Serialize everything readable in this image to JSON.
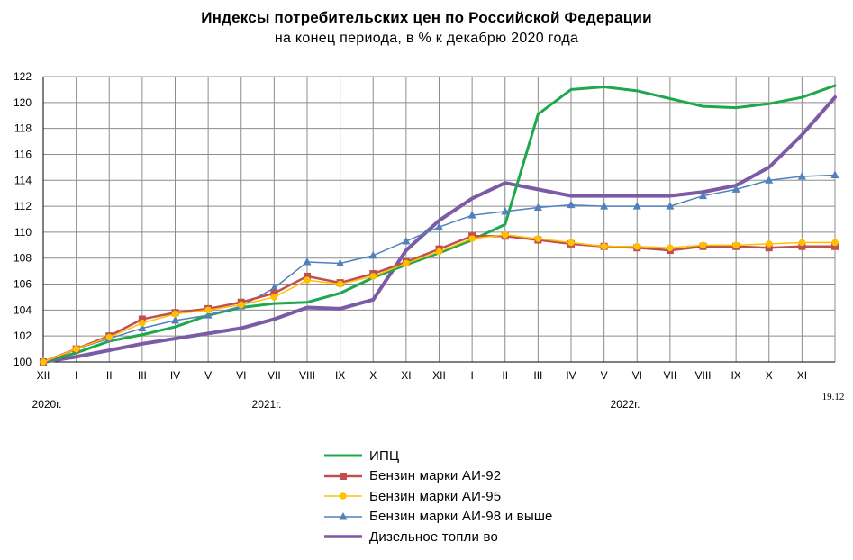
{
  "chart_data": {
    "type": "line",
    "title": "Индексы потребительских цен по Российской Федерации",
    "subtitle": "на конец  периода, в % к декабрю 2020 года",
    "x": [
      "XII",
      "I",
      "II",
      "III",
      "IV",
      "V",
      "VI",
      "VII",
      "VIII",
      "IX",
      "X",
      "XI",
      "XII",
      "I",
      "II",
      "III",
      "IV",
      "V",
      "VI",
      "VII",
      "VIII",
      "IX",
      "X",
      "XI",
      "19.12"
    ],
    "x_tick_labels": [
      "XII",
      "I",
      "II",
      "III",
      "IV",
      "V",
      "VI",
      "VII",
      "VIII",
      "IX",
      "X",
      "XI",
      "XII",
      "I",
      "II",
      "III",
      "IV",
      "V",
      "VI",
      "VII",
      "VIII",
      "IX",
      "X",
      "XI"
    ],
    "x_end_label": "19.12",
    "year_labels": [
      "2020г.",
      "2021г.",
      "2022г."
    ],
    "ylim": [
      100,
      122
    ],
    "y_ticks": [
      100,
      102,
      104,
      106,
      108,
      110,
      112,
      114,
      116,
      118,
      120,
      122
    ],
    "grid": true,
    "legend_position": "bottom",
    "series": [
      {
        "name": "ИПЦ",
        "color": "#1ea84d",
        "marker": "none",
        "width": 3,
        "values": [
          100,
          100.7,
          101.6,
          102.1,
          102.7,
          103.6,
          104.2,
          104.5,
          104.6,
          105.3,
          106.5,
          107.5,
          108.4,
          109.4,
          110.6,
          119.1,
          121.0,
          121.2,
          120.9,
          120.3,
          119.7,
          119.6,
          119.9,
          120.4,
          121.3
        ]
      },
      {
        "name": "Бензин марки АИ-92",
        "color": "#c0504d",
        "marker": "square",
        "width": 2.5,
        "values": [
          100,
          101.0,
          102.0,
          103.3,
          103.8,
          104.1,
          104.6,
          105.3,
          106.6,
          106.1,
          106.8,
          107.7,
          108.7,
          109.7,
          109.7,
          109.4,
          109.1,
          108.9,
          108.8,
          108.6,
          108.9,
          108.9,
          108.8,
          108.9,
          108.9
        ]
      },
      {
        "name": "Бензин марки АИ-95",
        "color": "#ffc000",
        "marker": "circle",
        "width": 1.5,
        "values": [
          100,
          101.0,
          101.9,
          103.0,
          103.7,
          104.0,
          104.4,
          105.0,
          106.3,
          106.0,
          106.6,
          107.6,
          108.5,
          109.5,
          109.8,
          109.5,
          109.2,
          108.9,
          108.9,
          108.8,
          109.0,
          109.0,
          109.1,
          109.2,
          109.2
        ]
      },
      {
        "name": "Бензин марки АИ-98 и  выше",
        "color": "#4f81bd",
        "marker": "triangle",
        "width": 1.5,
        "values": [
          100,
          101.0,
          101.8,
          102.6,
          103.2,
          103.6,
          104.3,
          105.7,
          107.7,
          107.6,
          108.2,
          109.3,
          110.4,
          111.3,
          111.6,
          111.9,
          112.1,
          112.0,
          112.0,
          112.0,
          112.8,
          113.3,
          114.0,
          114.3,
          114.4
        ]
      },
      {
        "name": "Дизельное топли во",
        "color": "#7b5aa6",
        "marker": "none",
        "width": 4,
        "values": [
          100,
          100.4,
          100.9,
          101.4,
          101.8,
          102.2,
          102.6,
          103.3,
          104.2,
          104.1,
          104.8,
          108.6,
          110.9,
          112.6,
          113.8,
          113.3,
          112.8,
          112.8,
          112.8,
          112.8,
          113.1,
          113.6,
          115.0,
          117.5,
          120.4
        ]
      }
    ]
  }
}
